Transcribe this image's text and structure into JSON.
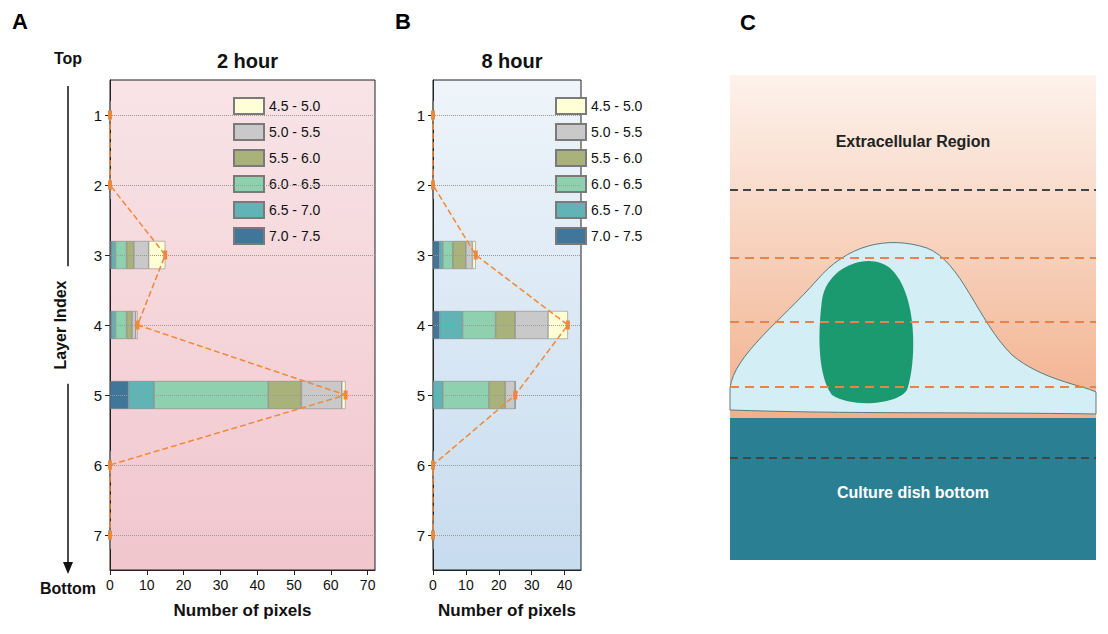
{
  "chart_data": [
    {
      "panel": "A",
      "type": "bar",
      "orientation": "horizontal",
      "stacked": true,
      "title": "2 hour",
      "x_label": "Number of pixels",
      "y_label": "Layer Index",
      "annotations": {
        "top": "Top",
        "bottom": "Bottom"
      },
      "categories": [
        1,
        2,
        3,
        4,
        5,
        6,
        7
      ],
      "xlim": [
        0,
        72
      ],
      "xticks": [
        0,
        10,
        20,
        30,
        40,
        50,
        60,
        70
      ],
      "grid": true,
      "legend": "upper right",
      "series": [
        {
          "name": "4.5 - 5.0",
          "color": "#FFFFD6",
          "values": [
            0,
            0,
            4.5,
            0.5,
            1,
            0,
            0
          ]
        },
        {
          "name": "5.0 - 5.5",
          "color": "#C9C9C9",
          "values": [
            0,
            0,
            4,
            1,
            11,
            0,
            0
          ]
        },
        {
          "name": "5.5 - 6.0",
          "color": "#A8B27A",
          "values": [
            0,
            0,
            2,
            1.5,
            9,
            0,
            0
          ]
        },
        {
          "name": "6.0 - 6.5",
          "color": "#8FD0AE",
          "values": [
            0,
            0,
            3,
            3,
            31,
            0,
            0
          ]
        },
        {
          "name": "6.5 - 7.0",
          "color": "#62B3B6",
          "values": [
            0,
            0,
            1,
            1,
            7,
            0,
            0
          ]
        },
        {
          "name": "7.0 - 7.5",
          "color": "#3F7699",
          "values": [
            0,
            0,
            0.5,
            0.5,
            5,
            0,
            0
          ]
        }
      ]
    },
    {
      "panel": "B",
      "type": "bar",
      "orientation": "horizontal",
      "stacked": true,
      "title": "8 hour",
      "x_label": "Number of pixels",
      "categories": [
        1,
        2,
        3,
        4,
        5,
        6,
        7
      ],
      "xlim": [
        0,
        45
      ],
      "xticks": [
        0,
        10,
        20,
        30,
        40
      ],
      "grid": true,
      "legend": "upper right",
      "series": [
        {
          "name": "4.5 - 5.0",
          "color": "#FFFFD6",
          "values": [
            0,
            0,
            1,
            6,
            0,
            0,
            0
          ]
        },
        {
          "name": "5.0 - 5.5",
          "color": "#C9C9C9",
          "values": [
            0,
            0,
            2,
            10,
            3,
            0,
            0
          ]
        },
        {
          "name": "5.5 - 6.0",
          "color": "#A8B27A",
          "values": [
            0,
            0,
            4,
            6,
            5,
            0,
            0
          ]
        },
        {
          "name": "6.0 - 6.5",
          "color": "#8FD0AE",
          "values": [
            0,
            0,
            3,
            10,
            14,
            0,
            0
          ]
        },
        {
          "name": "6.5 - 7.0",
          "color": "#62B3B6",
          "values": [
            0,
            0,
            1,
            7,
            3,
            0,
            0
          ]
        },
        {
          "name": "7.0 - 7.5",
          "color": "#3F7699",
          "values": [
            0,
            0,
            2,
            2,
            0,
            0,
            0
          ]
        }
      ]
    }
  ],
  "diagram": {
    "panel": "C",
    "labels": {
      "top": "Extracellular Region",
      "bottom": "Culture dish bottom"
    }
  }
}
